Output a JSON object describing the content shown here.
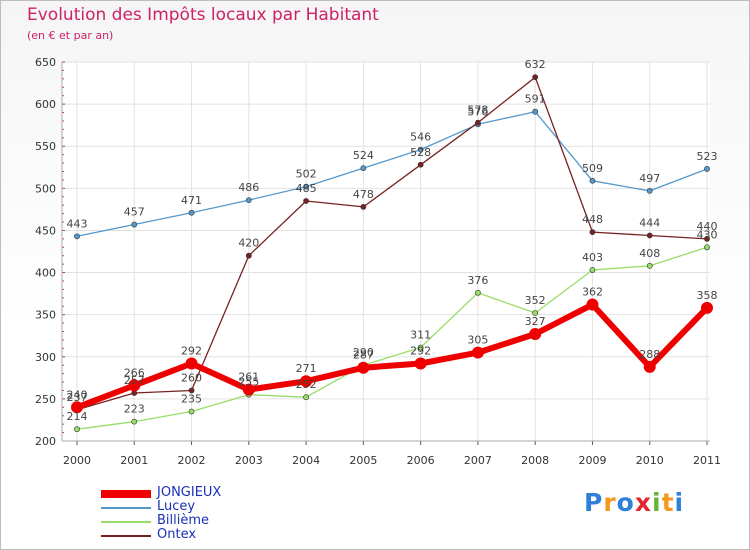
{
  "chart_data": {
    "type": "line",
    "title": "Evolution des Impôts locaux par Habitant",
    "subtitle": "(en € et par an)",
    "xlabel": "",
    "ylabel": "",
    "x": [
      "2000",
      "2001",
      "2002",
      "2003",
      "2004",
      "2005",
      "2006",
      "2007",
      "2008",
      "2009",
      "2010",
      "2011"
    ],
    "ylim": [
      200,
      650
    ],
    "yticks": [
      200,
      250,
      300,
      350,
      400,
      450,
      500,
      550,
      600,
      650
    ],
    "legend_position": "bottom-left",
    "series": [
      {
        "name": "Lucey",
        "color": "#5599cc",
        "values": [
          443,
          457,
          471,
          486,
          502,
          524,
          546,
          576,
          591,
          509,
          497,
          523
        ]
      },
      {
        "name": "Billième",
        "color": "#99dd66",
        "values": [
          214,
          223,
          235,
          255,
          252,
          290,
          311,
          376,
          352,
          403,
          408,
          430
        ]
      },
      {
        "name": "Ontex",
        "color": "#772222",
        "values": [
          237,
          257,
          260,
          420,
          485,
          478,
          528,
          578,
          632,
          448,
          444,
          440
        ]
      },
      {
        "name": "JONGIEUX",
        "color": "#ee0000",
        "values": [
          240,
          266,
          292,
          261,
          271,
          287,
          292,
          305,
          327,
          362,
          288,
          358
        ]
      }
    ]
  },
  "brand": {
    "letters": [
      "P",
      "r",
      "o",
      "x",
      "i",
      "t",
      "i"
    ],
    "colors": [
      "#2f7fd9",
      "#f29a1f",
      "#2f7fd9",
      "#e3262b",
      "#66b33a",
      "#f29a1f",
      "#2f7fd9"
    ]
  }
}
